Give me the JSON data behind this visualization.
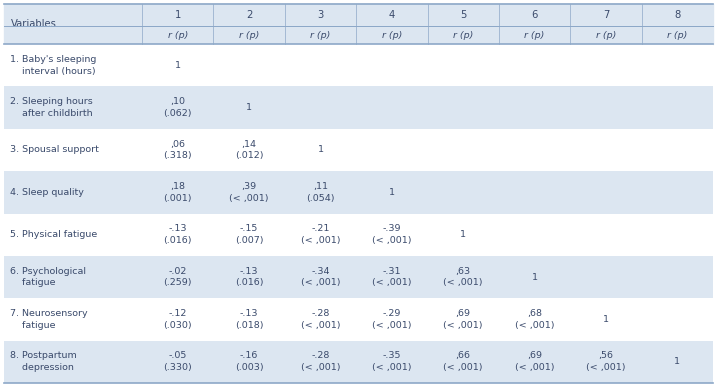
{
  "col_headers": [
    "1",
    "2",
    "3",
    "4",
    "5",
    "6",
    "7",
    "8"
  ],
  "col_subheader": "r (p)",
  "rows": [
    {
      "label": "1. Baby's sleeping\n    interval (hours)",
      "data": [
        "1",
        "",
        "",
        "",
        "",
        "",
        "",
        ""
      ]
    },
    {
      "label": "2. Sleeping hours\n    after childbirth",
      "data": [
        ",10\n(.062)",
        "1",
        "",
        "",
        "",
        "",
        "",
        ""
      ]
    },
    {
      "label": "3. Spousal support",
      "data": [
        ",06\n(.318)",
        ",14\n(.012)",
        "1",
        "",
        "",
        "",
        "",
        ""
      ]
    },
    {
      "label": "4. Sleep quality",
      "data": [
        ",18\n(.001)",
        ",39\n(< ,001)",
        ",11\n(.054)",
        "1",
        "",
        "",
        "",
        ""
      ]
    },
    {
      "label": "5. Physical fatigue",
      "data": [
        "-.13\n(.016)",
        "-.15\n(.007)",
        "-.21\n(< ,001)",
        "-.39\n(< ,001)",
        "1",
        "",
        "",
        ""
      ]
    },
    {
      "label": "6. Psychological\n    fatigue",
      "data": [
        "-.02\n(.259)",
        "-.13\n(.016)",
        "-.34\n(< ,001)",
        "-.31\n(< ,001)",
        ",63\n(< ,001)",
        "1",
        "",
        ""
      ]
    },
    {
      "label": "7. Neurosensory\n    fatigue",
      "data": [
        "-.12\n(.030)",
        "-.13\n(.018)",
        "-.28\n(< ,001)",
        "-.29\n(< ,001)",
        ",69\n(< ,001)",
        ",68\n(< ,001)",
        "1",
        ""
      ]
    },
    {
      "label": "8. Postpartum\n    depression",
      "data": [
        "-.05\n(.330)",
        "-.16\n(.003)",
        "-.28\n(< ,001)",
        "-.35\n(< ,001)",
        ",66\n(< ,001)",
        ",69\n(< ,001)",
        ",56\n(< ,001)",
        "1"
      ]
    }
  ],
  "bg_blue": "#dce6f1",
  "bg_white": "#ffffff",
  "border_color": "#8da8c8",
  "text_color": "#3a4a6b",
  "font_size": 6.8,
  "header_font_size": 7.2,
  "var_label": "Variables"
}
